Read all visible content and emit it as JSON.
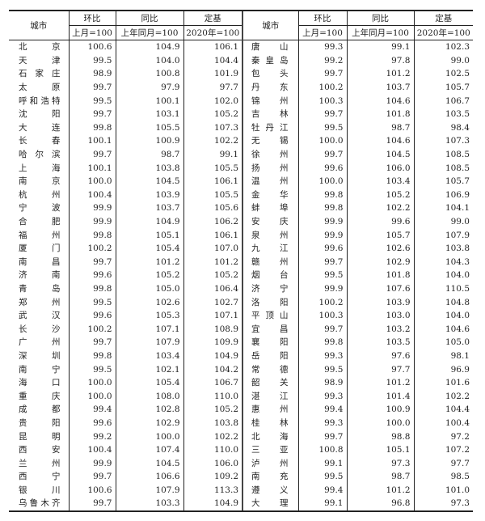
{
  "header": {
    "city": "城市",
    "mom": "环比",
    "yoy": "同比",
    "base": "定基",
    "mom_sub": "上月=100",
    "yoy_sub": "上年同月=100",
    "base_sub": "2020年=100"
  },
  "left_rows": [
    [
      "北　京",
      "100.6",
      "104.9",
      "106.1"
    ],
    [
      "天　津",
      "99.5",
      "104.0",
      "104.4"
    ],
    [
      "石家庄",
      "98.9",
      "100.8",
      "101.9"
    ],
    [
      "太　原",
      "99.7",
      "97.9",
      "97.7"
    ],
    [
      "呼和浩特",
      "99.5",
      "100.1",
      "102.0"
    ],
    [
      "沈　阳",
      "99.7",
      "103.1",
      "105.2"
    ],
    [
      "大　连",
      "99.8",
      "105.5",
      "107.3"
    ],
    [
      "长　春",
      "100.1",
      "100.9",
      "102.2"
    ],
    [
      "哈尔滨",
      "99.7",
      "98.7",
      "99.1"
    ],
    [
      "上　海",
      "100.1",
      "103.8",
      "105.5"
    ],
    [
      "南　京",
      "100.0",
      "104.5",
      "106.1"
    ],
    [
      "杭　州",
      "100.4",
      "103.9",
      "105.5"
    ],
    [
      "宁　波",
      "99.9",
      "103.7",
      "105.6"
    ],
    [
      "合　肥",
      "99.9",
      "104.9",
      "106.2"
    ],
    [
      "福　州",
      "99.8",
      "105.1",
      "106.1"
    ],
    [
      "厦　门",
      "100.2",
      "105.4",
      "107.0"
    ],
    [
      "南　昌",
      "99.7",
      "101.2",
      "101.2"
    ],
    [
      "济　南",
      "99.6",
      "105.2",
      "105.2"
    ],
    [
      "青　岛",
      "99.8",
      "105.0",
      "106.4"
    ],
    [
      "郑　州",
      "99.5",
      "102.6",
      "102.7"
    ],
    [
      "武　汉",
      "99.6",
      "105.3",
      "107.1"
    ],
    [
      "长　沙",
      "100.2",
      "107.1",
      "108.9"
    ],
    [
      "广　州",
      "99.7",
      "107.9",
      "109.9"
    ],
    [
      "深　圳",
      "99.8",
      "103.4",
      "104.9"
    ],
    [
      "南　宁",
      "99.5",
      "102.1",
      "104.2"
    ],
    [
      "海　口",
      "100.0",
      "105.4",
      "106.7"
    ],
    [
      "重　庆",
      "100.0",
      "108.0",
      "110.0"
    ],
    [
      "成　都",
      "99.4",
      "102.8",
      "105.2"
    ],
    [
      "贵　阳",
      "99.6",
      "102.9",
      "103.8"
    ],
    [
      "昆　明",
      "99.2",
      "100.0",
      "102.2"
    ],
    [
      "西　安",
      "100.4",
      "107.4",
      "110.0"
    ],
    [
      "兰　州",
      "99.9",
      "104.5",
      "106.0"
    ],
    [
      "西　宁",
      "99.7",
      "106.6",
      "109.2"
    ],
    [
      "银　川",
      "100.6",
      "107.9",
      "113.3"
    ],
    [
      "乌鲁木齐",
      "99.7",
      "103.3",
      "104.9"
    ]
  ],
  "right_rows": [
    [
      "唐　山",
      "99.3",
      "99.1",
      "102.3"
    ],
    [
      "秦皇岛",
      "99.2",
      "97.8",
      "99.0"
    ],
    [
      "包　头",
      "99.7",
      "101.2",
      "102.5"
    ],
    [
      "丹　东",
      "100.2",
      "103.7",
      "105.7"
    ],
    [
      "锦　州",
      "100.3",
      "104.6",
      "106.7"
    ],
    [
      "吉　林",
      "99.7",
      "101.8",
      "103.5"
    ],
    [
      "牡丹江",
      "99.5",
      "98.7",
      "98.4"
    ],
    [
      "无　锡",
      "100.0",
      "104.6",
      "107.3"
    ],
    [
      "徐　州",
      "99.7",
      "104.5",
      "108.5"
    ],
    [
      "扬　州",
      "99.6",
      "106.0",
      "108.5"
    ],
    [
      "温　州",
      "100.0",
      "103.4",
      "105.7"
    ],
    [
      "金　华",
      "99.8",
      "105.2",
      "106.9"
    ],
    [
      "蚌　埠",
      "99.8",
      "102.2",
      "104.1"
    ],
    [
      "安　庆",
      "99.9",
      "99.6",
      "99.0"
    ],
    [
      "泉　州",
      "99.9",
      "105.7",
      "107.9"
    ],
    [
      "九　江",
      "99.6",
      "102.6",
      "103.8"
    ],
    [
      "赣　州",
      "99.7",
      "102.9",
      "104.3"
    ],
    [
      "烟　台",
      "99.5",
      "101.8",
      "104.0"
    ],
    [
      "济　宁",
      "99.9",
      "107.6",
      "110.5"
    ],
    [
      "洛　阳",
      "100.2",
      "103.9",
      "104.8"
    ],
    [
      "平顶山",
      "100.3",
      "103.0",
      "104.0"
    ],
    [
      "宜　昌",
      "99.7",
      "103.2",
      "104.6"
    ],
    [
      "襄　阳",
      "99.8",
      "103.5",
      "105.0"
    ],
    [
      "岳　阳",
      "99.3",
      "97.6",
      "98.1"
    ],
    [
      "常　德",
      "99.5",
      "97.7",
      "96.9"
    ],
    [
      "韶　关",
      "98.9",
      "101.2",
      "101.6"
    ],
    [
      "湛　江",
      "99.3",
      "101.4",
      "102.2"
    ],
    [
      "惠　州",
      "99.4",
      "100.9",
      "104.4"
    ],
    [
      "桂　林",
      "99.3",
      "100.0",
      "100.4"
    ],
    [
      "北　海",
      "99.7",
      "98.8",
      "97.2"
    ],
    [
      "三　亚",
      "100.8",
      "105.1",
      "107.2"
    ],
    [
      "泸　州",
      "99.1",
      "97.3",
      "97.7"
    ],
    [
      "南　充",
      "99.5",
      "98.7",
      "98.5"
    ],
    [
      "遵　义",
      "99.4",
      "101.2",
      "101.0"
    ],
    [
      "大　理",
      "99.1",
      "96.8",
      "97.3"
    ]
  ]
}
